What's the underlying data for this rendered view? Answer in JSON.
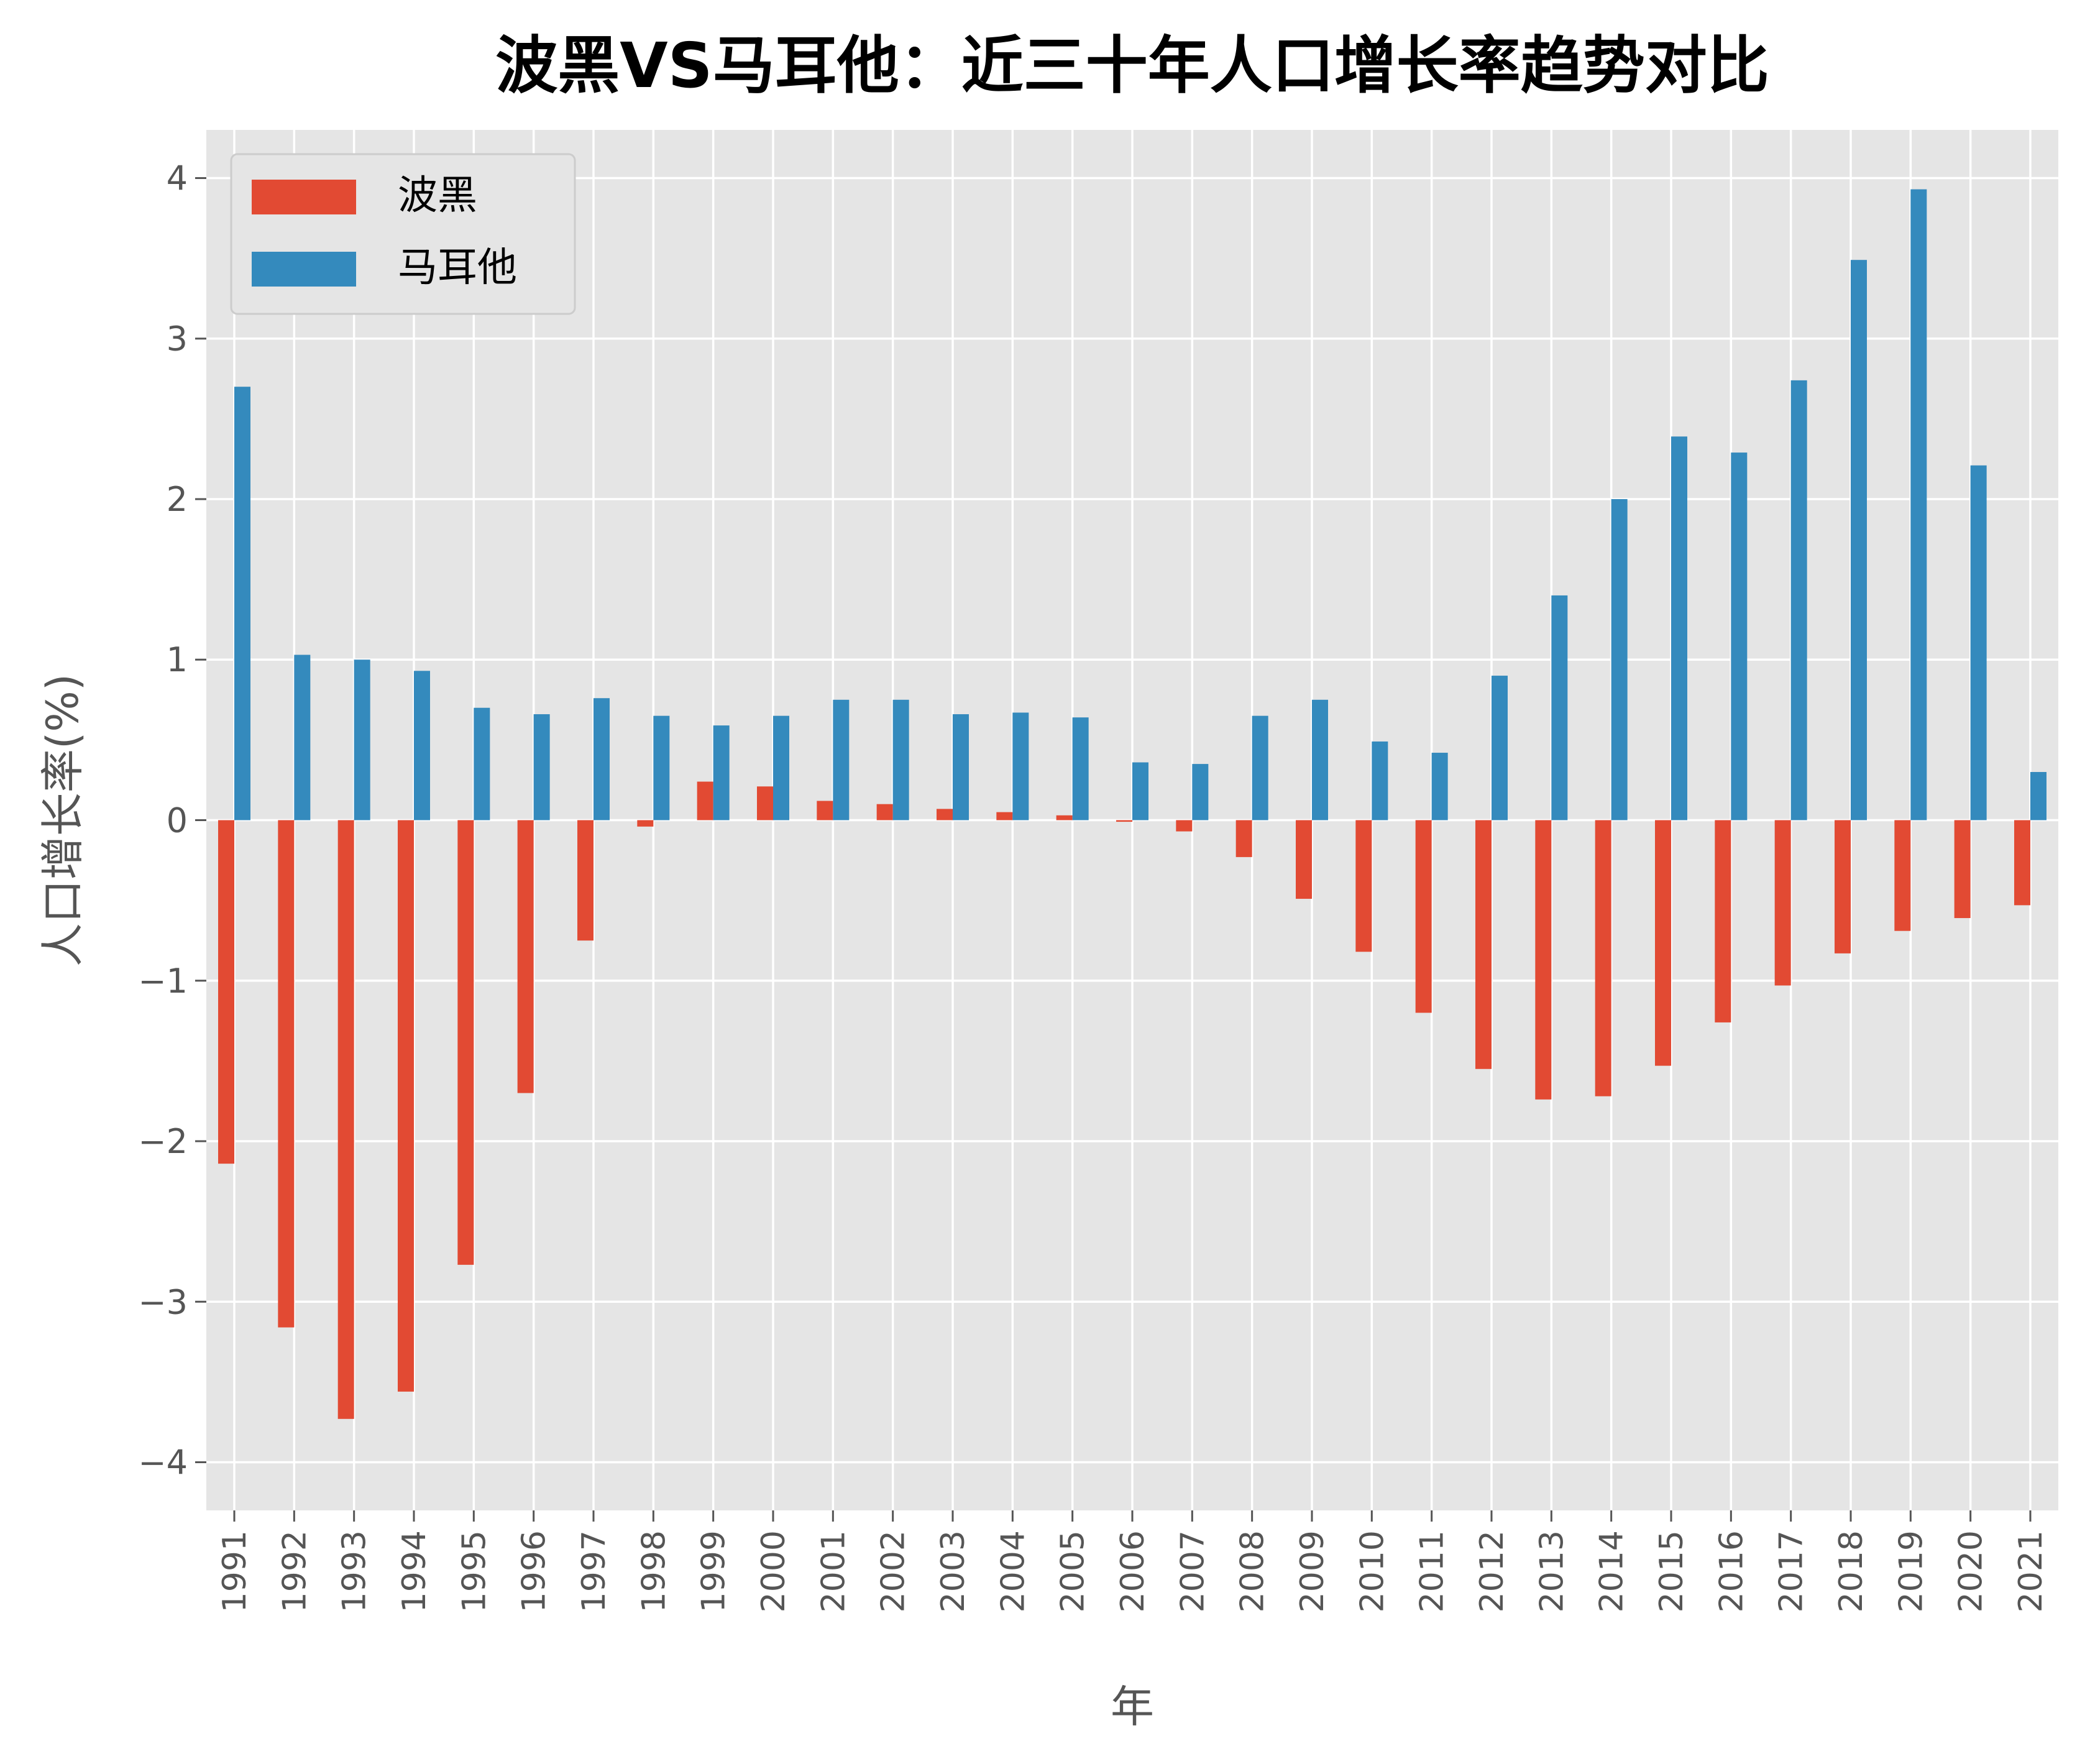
{
  "colors": {
    "background": "#FFFFFF",
    "plot_background": "#E5E5E5",
    "grid": "#FFFFFF",
    "text": "#555555",
    "title": "#000000",
    "series_bosnia": "#E24A33",
    "series_malta": "#348ABD"
  },
  "chart_data": {
    "type": "bar",
    "title": "波黑VS马耳他：近三十年人口增长率趋势对比",
    "xlabel": "年",
    "ylabel": "人口增长率(%)",
    "ylim": [
      -4.3,
      4.3
    ],
    "yticks": [
      -4,
      -3,
      -2,
      -1,
      0,
      1,
      2,
      3,
      4
    ],
    "ytick_labels": [
      "−4",
      "−3",
      "−2",
      "−1",
      "0",
      "1",
      "2",
      "3",
      "4"
    ],
    "grid": true,
    "legend_position": "top-left",
    "categories": [
      "1991",
      "1992",
      "1993",
      "1994",
      "1995",
      "1996",
      "1997",
      "1998",
      "1999",
      "2000",
      "2001",
      "2002",
      "2003",
      "2004",
      "2005",
      "2006",
      "2007",
      "2008",
      "2009",
      "2010",
      "2011",
      "2012",
      "2013",
      "2014",
      "2015",
      "2016",
      "2017",
      "2018",
      "2019",
      "2020",
      "2021"
    ],
    "series": [
      {
        "name": "波黑",
        "color": "#E24A33",
        "values": [
          -2.14,
          -3.16,
          -3.73,
          -3.56,
          -2.77,
          -1.7,
          -0.75,
          -0.04,
          0.24,
          0.21,
          0.12,
          0.1,
          0.07,
          0.05,
          0.03,
          -0.01,
          -0.07,
          -0.23,
          -0.49,
          -0.82,
          -1.2,
          -1.55,
          -1.74,
          -1.72,
          -1.53,
          -1.26,
          -1.03,
          -0.83,
          -0.69,
          -0.61,
          -0.53
        ]
      },
      {
        "name": "马耳他",
        "color": "#348ABD",
        "values": [
          2.7,
          1.03,
          1.0,
          0.93,
          0.7,
          0.66,
          0.76,
          0.65,
          0.59,
          0.65,
          0.75,
          0.75,
          0.66,
          0.67,
          0.64,
          0.36,
          0.35,
          0.65,
          0.75,
          0.49,
          0.42,
          0.9,
          1.4,
          2.0,
          2.39,
          2.29,
          2.74,
          3.49,
          3.93,
          2.21,
          0.3
        ]
      }
    ]
  }
}
